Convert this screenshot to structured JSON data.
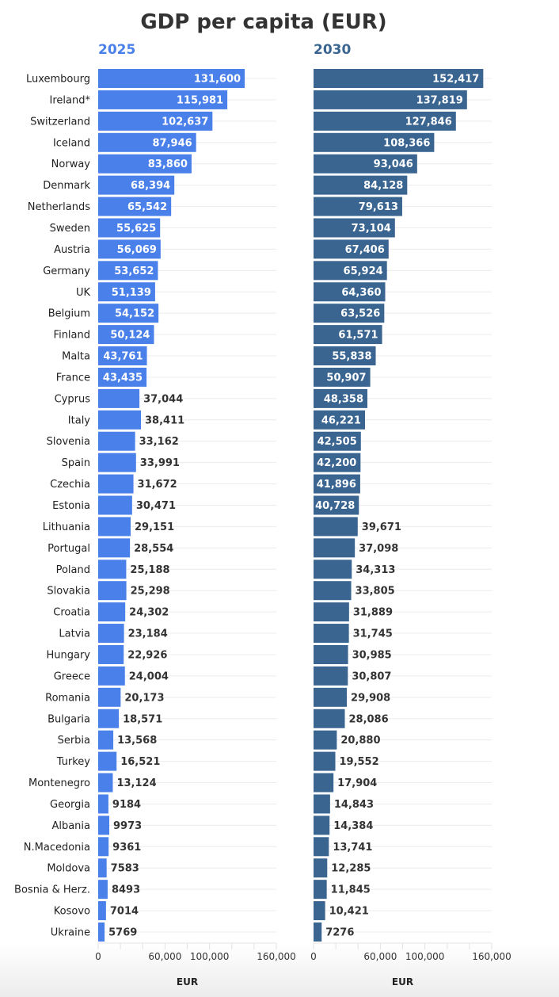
{
  "chart_data": {
    "type": "bar",
    "orientation": "horizontal",
    "title": "GDP per capita (EUR)",
    "xlabel": "EUR",
    "xlim": [
      0,
      160000
    ],
    "tick_labels": [
      "0",
      "60,000",
      "100,000",
      "160,000"
    ],
    "tick_values": [
      0,
      60000,
      100000,
      160000
    ],
    "categories": [
      "Luxembourg",
      "Ireland*",
      "Switzerland",
      "Iceland",
      "Norway",
      "Denmark",
      "Netherlands",
      "Sweden",
      "Austria",
      "Germany",
      "UK",
      "Belgium",
      "Finland",
      "Malta",
      "France",
      "Cyprus",
      "Italy",
      "Slovenia",
      "Spain",
      "Czechia",
      "Estonia",
      "Lithuania",
      "Portugal",
      "Poland",
      "Slovakia",
      "Croatia",
      "Latvia",
      "Hungary",
      "Greece",
      "Romania",
      "Bulgaria",
      "Serbia",
      "Turkey",
      "Montenegro",
      "Georgia",
      "Albania",
      "N.Macedonia",
      "Moldova",
      "Bosnia & Herz.",
      "Kosovo",
      "Ukraine"
    ],
    "series": [
      {
        "name": "2025",
        "color": "#4a80ea",
        "values": [
          131600,
          115981,
          102637,
          87946,
          83860,
          68394,
          65542,
          55625,
          56069,
          53652,
          51139,
          54152,
          50124,
          43761,
          43435,
          37044,
          38411,
          33162,
          33991,
          31672,
          30471,
          29151,
          28554,
          25188,
          25298,
          24302,
          23184,
          22926,
          24004,
          20173,
          18571,
          13568,
          16521,
          13124,
          9184,
          9973,
          9361,
          7583,
          8493,
          7014,
          5769
        ],
        "labels": [
          "131,600",
          "115,981",
          "102,637",
          "87,946",
          "83,860",
          "68,394",
          "65,542",
          "55,625",
          "56,069",
          "53,652",
          "51,139",
          "54,152",
          "50,124",
          "43,761",
          "43,435",
          "37,044",
          "38,411",
          "33,162",
          "33,991",
          "31,672",
          "30,471",
          "29,151",
          "28,554",
          "25,188",
          "25,298",
          "24,302",
          "23,184",
          "22,926",
          "24,004",
          "20,173",
          "18,571",
          "13,568",
          "16,521",
          "13,124",
          "9184",
          "9973",
          "9361",
          "7583",
          "8493",
          "7014",
          "5769"
        ]
      },
      {
        "name": "2030",
        "color": "#3a6591",
        "values": [
          152417,
          137819,
          127846,
          108366,
          93046,
          84128,
          79613,
          73104,
          67406,
          65924,
          64360,
          63526,
          61571,
          55838,
          50907,
          48358,
          46221,
          42505,
          42200,
          41896,
          40728,
          39671,
          37098,
          34313,
          33805,
          31889,
          31745,
          30985,
          30807,
          29908,
          28086,
          20880,
          19552,
          17904,
          14843,
          14384,
          13741,
          12285,
          11845,
          10421,
          7276
        ],
        "labels": [
          "152,417",
          "137,819",
          "127,846",
          "108,366",
          "93,046",
          "84,128",
          "79,613",
          "73,104",
          "67,406",
          "65,924",
          "64,360",
          "63,526",
          "61,571",
          "55,838",
          "50,907",
          "48,358",
          "46,221",
          "42,505",
          "42,200",
          "41,896",
          "40,728",
          "39,671",
          "37,098",
          "34,313",
          "33,805",
          "31,889",
          "31,745",
          "30,985",
          "30,807",
          "29,908",
          "28,086",
          "20,880",
          "19,552",
          "17,904",
          "14,843",
          "14,384",
          "13,741",
          "12,285",
          "11,845",
          "10,421",
          "7276"
        ]
      }
    ],
    "grid": true,
    "legend": "none"
  }
}
